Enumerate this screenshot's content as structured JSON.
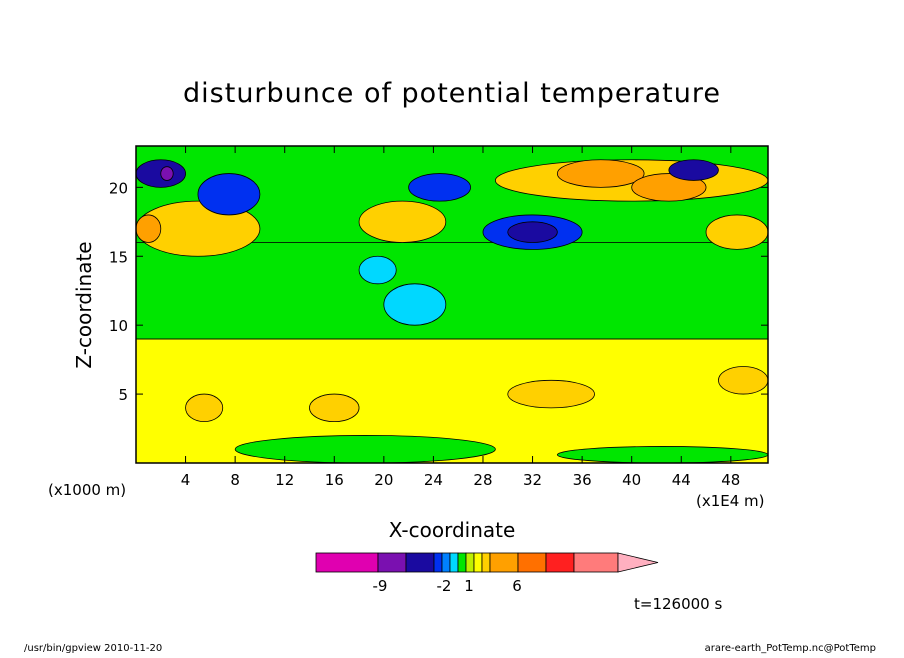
{
  "chart_data": {
    "type": "heatmap",
    "title": "disturbunce of potential temperature",
    "xlabel": "X-coordinate",
    "ylabel": "Z-coordinate",
    "x_unit_left": "(x1000 m)",
    "x_unit_right": "(x1E4 m)",
    "xlim": [
      0,
      51
    ],
    "ylim": [
      0,
      23
    ],
    "x_ticks": [
      "4",
      "8",
      "12",
      "16",
      "20",
      "24",
      "28",
      "32",
      "36",
      "40",
      "44",
      "48"
    ],
    "y_ticks": [
      "5",
      "10",
      "15",
      "20"
    ],
    "colorbar_labels": [
      "-9",
      "-2",
      "1",
      "6"
    ],
    "colorbar_colors": [
      "#e000b0",
      "#7a10b0",
      "#1a0aa0",
      "#0030f0",
      "#0080ff",
      "#00d8ff",
      "#00e600",
      "#bff000",
      "#ffff00",
      "#ffd000",
      "#ffa000",
      "#ff7000",
      "#ff2020",
      "#ff7b7b",
      "#ffb0c0"
    ],
    "time_label": "t=126000 s",
    "regions": [
      {
        "level": "yellow",
        "x": [
          0,
          51
        ],
        "y": [
          0,
          9
        ]
      },
      {
        "level": "green",
        "x": [
          0,
          51
        ],
        "y": [
          9,
          16
        ]
      },
      {
        "level": "green",
        "x": [
          8,
          29
        ],
        "y": [
          0,
          2
        ]
      },
      {
        "level": "green",
        "x": [
          34,
          51
        ],
        "y": [
          0,
          1.2
        ]
      },
      {
        "level": "orange-light",
        "x": [
          4,
          7
        ],
        "y": [
          3,
          5
        ]
      },
      {
        "level": "orange-light",
        "x": [
          14,
          18
        ],
        "y": [
          3,
          5
        ]
      },
      {
        "level": "orange-light",
        "x": [
          30,
          37
        ],
        "y": [
          4,
          6
        ]
      },
      {
        "level": "orange-light",
        "x": [
          47,
          51
        ],
        "y": [
          5,
          7
        ]
      },
      {
        "level": "orange-light",
        "x": [
          0,
          10
        ],
        "y": [
          15,
          19
        ]
      },
      {
        "level": "orange",
        "x": [
          0,
          2
        ],
        "y": [
          16,
          18
        ]
      },
      {
        "level": "cyan",
        "x": [
          18,
          21
        ],
        "y": [
          13,
          15
        ]
      },
      {
        "level": "cyan",
        "x": [
          20,
          25
        ],
        "y": [
          10,
          13
        ]
      },
      {
        "level": "blue",
        "x": [
          5,
          10
        ],
        "y": [
          18,
          21
        ]
      },
      {
        "level": "blue-dark",
        "x": [
          0,
          4
        ],
        "y": [
          20,
          22
        ]
      },
      {
        "level": "purple",
        "x": [
          2,
          3
        ],
        "y": [
          20.5,
          21.5
        ]
      },
      {
        "level": "orange-light",
        "x": [
          18,
          25
        ],
        "y": [
          16,
          19
        ]
      },
      {
        "level": "blue",
        "x": [
          22,
          27
        ],
        "y": [
          19,
          21
        ]
      },
      {
        "level": "orange-light",
        "x": [
          29,
          51
        ],
        "y": [
          19,
          22
        ]
      },
      {
        "level": "orange",
        "x": [
          34,
          41
        ],
        "y": [
          20,
          22
        ]
      },
      {
        "level": "orange",
        "x": [
          40,
          46
        ],
        "y": [
          19,
          21
        ]
      },
      {
        "level": "blue",
        "x": [
          28,
          36
        ],
        "y": [
          15.5,
          18
        ]
      },
      {
        "level": "blue-dark",
        "x": [
          30,
          34
        ],
        "y": [
          16,
          17.5
        ]
      },
      {
        "level": "orange-light",
        "x": [
          46,
          51
        ],
        "y": [
          15.5,
          18
        ]
      },
      {
        "level": "blue-dark",
        "x": [
          43,
          47
        ],
        "y": [
          20.5,
          22
        ]
      }
    ]
  },
  "footer": {
    "left": "/usr/bin/gpview 2010-11-20",
    "right": "arare-earth_PotTemp.nc@PotTemp"
  }
}
